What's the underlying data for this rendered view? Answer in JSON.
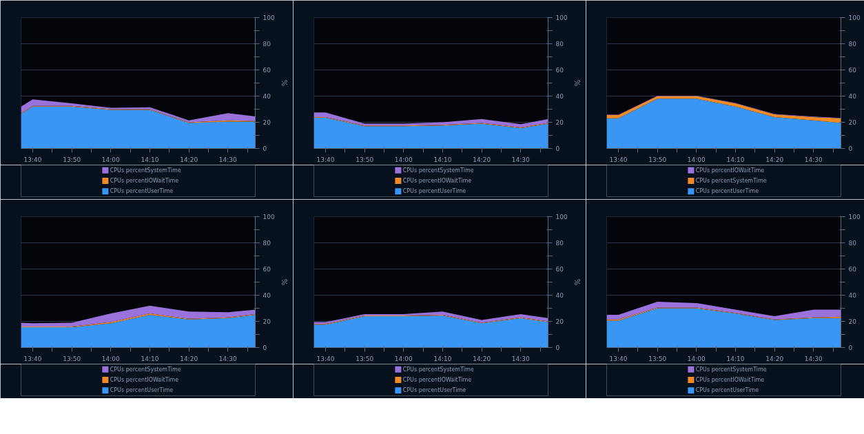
{
  "chart_data": [
    {
      "type": "area",
      "stacked": true,
      "ylabel": "%",
      "x": [
        13.6167,
        13.6667,
        13.8333,
        14.0,
        14.1667,
        14.3333,
        14.5,
        14.6167
      ],
      "xlim": [
        13.6167,
        14.6167
      ],
      "xticks": [
        {
          "value": 13.6667,
          "label": "13:40"
        },
        {
          "value": 13.75,
          "label": null
        },
        {
          "value": 13.8333,
          "label": "13:50"
        },
        {
          "value": 13.9167,
          "label": null
        },
        {
          "value": 14.0,
          "label": "14:00"
        },
        {
          "value": 14.0833,
          "label": null
        },
        {
          "value": 14.1667,
          "label": "14:10"
        },
        {
          "value": 14.25,
          "label": null
        },
        {
          "value": 14.3333,
          "label": "14:20"
        },
        {
          "value": 14.4167,
          "label": null
        },
        {
          "value": 14.5,
          "label": "14:30"
        },
        {
          "value": 14.5833,
          "label": null
        }
      ],
      "ylim": [
        0,
        100
      ],
      "yticks": [
        0,
        {
          "value": 10,
          "label": null
        },
        20,
        {
          "value": 30,
          "label": null
        },
        40,
        {
          "value": 50,
          "label": null
        },
        60,
        {
          "value": 70,
          "label": null
        },
        80,
        {
          "value": 90,
          "label": null
        },
        100
      ],
      "grid": "y",
      "legend": "bottom",
      "series": [
        {
          "name": "CPUs percentUserTime",
          "color": "#3a96f5",
          "values": [
            26.5,
            32,
            32,
            29.5,
            29.5,
            19.5,
            20.5,
            20.5
          ]
        },
        {
          "name": "CPUs percentIOWaitTime",
          "color": "#f08a24",
          "values": [
            0.5,
            0.5,
            0.5,
            0.5,
            0.5,
            0.5,
            1,
            0.5
          ]
        },
        {
          "name": "CPUs percentSystemTime",
          "color": "#9a72dc",
          "values": [
            5,
            5,
            2,
            1,
            1.5,
            1.5,
            5.5,
            3.5
          ]
        }
      ]
    },
    {
      "type": "area",
      "stacked": true,
      "ylabel": "%",
      "x": [
        13.6167,
        13.6667,
        13.8333,
        14.0,
        14.1667,
        14.3333,
        14.5,
        14.6167
      ],
      "xlim": [
        13.6167,
        14.6167
      ],
      "xticks": [
        {
          "value": 13.6667,
          "label": "13:40"
        },
        {
          "value": 13.75,
          "label": null
        },
        {
          "value": 13.8333,
          "label": "13:50"
        },
        {
          "value": 13.9167,
          "label": null
        },
        {
          "value": 14.0,
          "label": "14:00"
        },
        {
          "value": 14.0833,
          "label": null
        },
        {
          "value": 14.1667,
          "label": "14:10"
        },
        {
          "value": 14.25,
          "label": null
        },
        {
          "value": 14.3333,
          "label": "14:20"
        },
        {
          "value": 14.4167,
          "label": null
        },
        {
          "value": 14.5,
          "label": "14:30"
        },
        {
          "value": 14.5833,
          "label": null
        }
      ],
      "ylim": [
        0,
        100
      ],
      "yticks": [
        0,
        {
          "value": 10,
          "label": null
        },
        20,
        {
          "value": 30,
          "label": null
        },
        40,
        {
          "value": 50,
          "label": null
        },
        60,
        {
          "value": 70,
          "label": null
        },
        80,
        {
          "value": 90,
          "label": null
        },
        100
      ],
      "grid": "y",
      "legend": "bottom",
      "series": [
        {
          "name": "CPUs percentUserTime",
          "color": "#3a96f5",
          "values": [
            23.5,
            23.5,
            17,
            17,
            17.5,
            19,
            15.5,
            19
          ]
        },
        {
          "name": "CPUs percentIOWaitTime",
          "color": "#f08a24",
          "values": [
            0.5,
            0.5,
            0.5,
            0.5,
            0.5,
            0.5,
            0.5,
            0.5
          ]
        },
        {
          "name": "CPUs percentSystemTime",
          "color": "#9a72dc",
          "values": [
            3.5,
            3.5,
            1.5,
            1.5,
            2,
            3,
            2.5,
            3
          ]
        }
      ]
    },
    {
      "type": "area",
      "stacked": true,
      "x": [
        13.6167,
        13.6667,
        13.8333,
        14.0,
        14.1667,
        14.3333,
        14.5,
        14.6167
      ],
      "xlim": [
        13.6167,
        14.6167
      ],
      "xticks": [
        {
          "value": 13.6667,
          "label": "13:40"
        },
        {
          "value": 13.75,
          "label": null
        },
        {
          "value": 13.8333,
          "label": "13:50"
        },
        {
          "value": 13.9167,
          "label": null
        },
        {
          "value": 14.0,
          "label": "14:00"
        },
        {
          "value": 14.0833,
          "label": null
        },
        {
          "value": 14.1667,
          "label": "14:10"
        },
        {
          "value": 14.25,
          "label": null
        },
        {
          "value": 14.3333,
          "label": "14:20"
        },
        {
          "value": 14.4167,
          "label": null
        },
        {
          "value": 14.5,
          "label": "14:30"
        },
        {
          "value": 14.5833,
          "label": null
        }
      ],
      "ylim": [
        0,
        100
      ],
      "yticks": [
        0,
        {
          "value": 10,
          "label": null
        },
        20,
        {
          "value": 30,
          "label": null
        },
        40,
        {
          "value": 50,
          "label": null
        },
        60,
        {
          "value": 70,
          "label": null
        },
        80,
        {
          "value": 90,
          "label": null
        },
        100
      ],
      "grid": "y",
      "legend": "bottom",
      "series": [
        {
          "name": "CPUs percentUserTime",
          "color": "#3a96f5",
          "values": [
            23,
            23,
            38,
            38,
            32,
            24,
            21.5,
            19.5
          ]
        },
        {
          "name": "CPUs percentSystemTime",
          "color": "#f08a24",
          "values": [
            2.5,
            2.5,
            2,
            2,
            2.5,
            2,
            2.5,
            3.5
          ]
        },
        {
          "name": "CPUs percentIOWaitTime",
          "color": "#9a72dc",
          "values": [
            0.3,
            0.3,
            0.3,
            0.3,
            0.3,
            0.3,
            0.3,
            0.3
          ]
        }
      ]
    },
    {
      "type": "area",
      "stacked": true,
      "ylabel": "%",
      "x": [
        13.6167,
        13.6667,
        13.8333,
        14.0,
        14.1667,
        14.3333,
        14.5,
        14.6167
      ],
      "xlim": [
        13.6167,
        14.6167
      ],
      "xticks": [
        {
          "value": 13.6667,
          "label": "13:40"
        },
        {
          "value": 13.75,
          "label": null
        },
        {
          "value": 13.8333,
          "label": "13:50"
        },
        {
          "value": 13.9167,
          "label": null
        },
        {
          "value": 14.0,
          "label": "14:00"
        },
        {
          "value": 14.0833,
          "label": null
        },
        {
          "value": 14.1667,
          "label": "14:10"
        },
        {
          "value": 14.25,
          "label": null
        },
        {
          "value": 14.3333,
          "label": "14:20"
        },
        {
          "value": 14.4167,
          "label": null
        },
        {
          "value": 14.5,
          "label": "14:30"
        },
        {
          "value": 14.5833,
          "label": null
        }
      ],
      "ylim": [
        0,
        100
      ],
      "yticks": [
        0,
        {
          "value": 10,
          "label": null
        },
        20,
        {
          "value": 30,
          "label": null
        },
        40,
        {
          "value": 50,
          "label": null
        },
        60,
        {
          "value": 70,
          "label": null
        },
        80,
        {
          "value": 90,
          "label": null
        },
        100
      ],
      "grid": "y",
      "legend": "bottom",
      "series": [
        {
          "name": "CPUs percentUserTime",
          "color": "#3a96f5",
          "values": [
            15.5,
            15.5,
            15.5,
            18.5,
            25,
            21.5,
            22.5,
            25
          ]
        },
        {
          "name": "CPUs percentIOWaitTime",
          "color": "#f08a24",
          "values": [
            0.5,
            0.5,
            0.5,
            1,
            1,
            0.5,
            0.5,
            0.5
          ]
        },
        {
          "name": "CPUs percentSystemTime",
          "color": "#9a72dc",
          "values": [
            3,
            2.5,
            3,
            6.5,
            6,
            5.5,
            4,
            3.5
          ]
        }
      ]
    },
    {
      "type": "area",
      "stacked": true,
      "ylabel": "%",
      "x": [
        13.6167,
        13.6667,
        13.8333,
        14.0,
        14.1667,
        14.3333,
        14.5,
        14.6167
      ],
      "xlim": [
        13.6167,
        14.6167
      ],
      "xticks": [
        {
          "value": 13.6667,
          "label": "13:40"
        },
        {
          "value": 13.75,
          "label": null
        },
        {
          "value": 13.8333,
          "label": "13:50"
        },
        {
          "value": 13.9167,
          "label": null
        },
        {
          "value": 14.0,
          "label": "14:00"
        },
        {
          "value": 14.0833,
          "label": null
        },
        {
          "value": 14.1667,
          "label": "14:10"
        },
        {
          "value": 14.25,
          "label": null
        },
        {
          "value": 14.3333,
          "label": "14:20"
        },
        {
          "value": 14.4167,
          "label": null
        },
        {
          "value": 14.5,
          "label": "14:30"
        },
        {
          "value": 14.5833,
          "label": null
        }
      ],
      "ylim": [
        0,
        100
      ],
      "yticks": [
        0,
        {
          "value": 10,
          "label": null
        },
        20,
        {
          "value": 30,
          "label": null
        },
        40,
        {
          "value": 50,
          "label": null
        },
        60,
        {
          "value": 70,
          "label": null
        },
        80,
        {
          "value": 90,
          "label": null
        },
        100
      ],
      "grid": "y",
      "legend": "bottom",
      "series": [
        {
          "name": "CPUs percentUserTime",
          "color": "#3a96f5",
          "values": [
            17.5,
            17.5,
            24,
            24,
            24.5,
            18.5,
            22.5,
            19.5
          ]
        },
        {
          "name": "CPUs percentIOWaitTime",
          "color": "#f08a24",
          "values": [
            0.5,
            0.5,
            0.5,
            0.5,
            0.5,
            0.5,
            0.5,
            0.5
          ]
        },
        {
          "name": "CPUs percentSystemTime",
          "color": "#9a72dc",
          "values": [
            1.5,
            1.5,
            1,
            1,
            2.5,
            2,
            2.5,
            2.5
          ]
        }
      ]
    },
    {
      "type": "area",
      "stacked": true,
      "x": [
        13.6167,
        13.6667,
        13.8333,
        14.0,
        14.1667,
        14.3333,
        14.5,
        14.6167
      ],
      "xlim": [
        13.6167,
        14.6167
      ],
      "xticks": [
        {
          "value": 13.6667,
          "label": "13:40"
        },
        {
          "value": 13.75,
          "label": null
        },
        {
          "value": 13.8333,
          "label": "13:50"
        },
        {
          "value": 13.9167,
          "label": null
        },
        {
          "value": 14.0,
          "label": "14:00"
        },
        {
          "value": 14.0833,
          "label": null
        },
        {
          "value": 14.1667,
          "label": "14:10"
        },
        {
          "value": 14.25,
          "label": null
        },
        {
          "value": 14.3333,
          "label": "14:20"
        },
        {
          "value": 14.4167,
          "label": null
        },
        {
          "value": 14.5,
          "label": "14:30"
        },
        {
          "value": 14.5833,
          "label": null
        }
      ],
      "ylim": [
        0,
        100
      ],
      "yticks": [
        0,
        {
          "value": 10,
          "label": null
        },
        20,
        {
          "value": 30,
          "label": null
        },
        40,
        {
          "value": 50,
          "label": null
        },
        60,
        {
          "value": 70,
          "label": null
        },
        80,
        {
          "value": 90,
          "label": null
        },
        100
      ],
      "grid": "y",
      "legend": "bottom",
      "series": [
        {
          "name": "CPUs percentUserTime",
          "color": "#3a96f5",
          "values": [
            20.5,
            20.5,
            30,
            30,
            26,
            21,
            22.5,
            22.5
          ]
        },
        {
          "name": "CPUs percentIOWaitTime",
          "color": "#f08a24",
          "values": [
            1,
            1,
            0.5,
            0.5,
            0.5,
            0.5,
            0.5,
            1
          ]
        },
        {
          "name": "CPUs percentSystemTime",
          "color": "#9a72dc",
          "values": [
            3.5,
            3.5,
            4.5,
            3.5,
            2.5,
            2.5,
            6,
            5.5
          ]
        }
      ]
    }
  ]
}
